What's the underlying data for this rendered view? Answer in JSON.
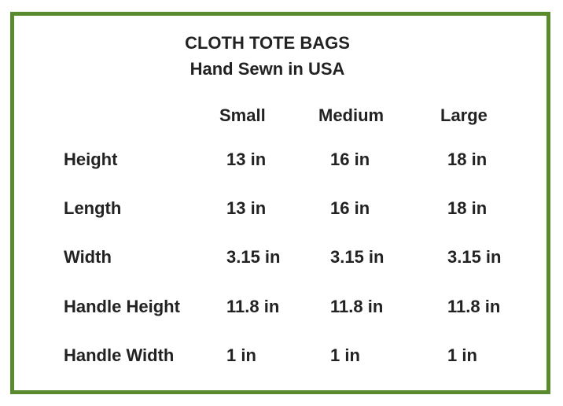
{
  "title": "CLOTH TOTE BAGS",
  "subtitle": "Hand Sewn in USA",
  "border_color": "#5a8a2e",
  "columns": [
    "Small",
    "Medium",
    "Large"
  ],
  "rows": [
    {
      "label": "Height",
      "values": [
        "13 in",
        "16 in",
        "18 in"
      ]
    },
    {
      "label": "Length",
      "values": [
        "13 in",
        "16 in",
        "18 in"
      ]
    },
    {
      "label": "Width",
      "values": [
        "3.15 in",
        "3.15 in",
        "3.15 in"
      ]
    },
    {
      "label": "Handle Height",
      "values": [
        "11.8 in",
        "11.8 in",
        "11.8 in"
      ]
    },
    {
      "label": "Handle Width",
      "values": [
        "1 in",
        "1 in",
        "1 in"
      ]
    }
  ]
}
